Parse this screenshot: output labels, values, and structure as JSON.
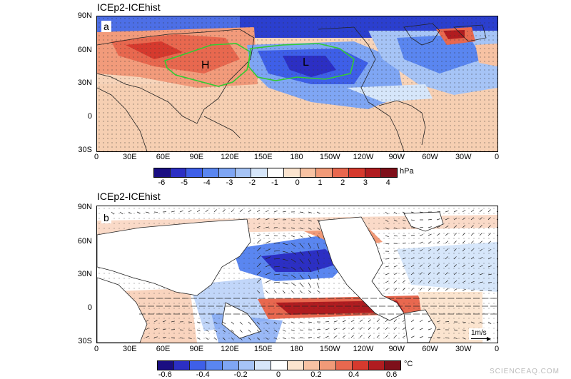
{
  "panel_a": {
    "title": "ICEp2-ICEhist",
    "letter": "a",
    "high_label": "H",
    "low_label": "L",
    "lat_ticks": [
      "90N",
      "60N",
      "30N",
      "0",
      "30S"
    ],
    "lon_ticks": [
      "0",
      "30E",
      "60E",
      "90E",
      "120E",
      "150E",
      "180",
      "150W",
      "120W",
      "90W",
      "60W",
      "30W",
      "0"
    ],
    "colorbar": {
      "colors": [
        "#1a0e82",
        "#2c2fc4",
        "#3e5fe8",
        "#5a86f0",
        "#7fa6f4",
        "#a6c4f6",
        "#d6e6fa",
        "#ffffff",
        "#fbe4cf",
        "#f7c2a3",
        "#f19a78",
        "#e8684f",
        "#d63a2e",
        "#b01c20",
        "#7e0f1a"
      ],
      "labels": [
        "-6",
        "-5",
        "-4",
        "-3",
        "-2",
        "-1",
        "0",
        "1",
        "2",
        "3",
        "4"
      ],
      "unit": "hPa"
    }
  },
  "panel_b": {
    "title": "ICEp2-ICEhist",
    "letter": "b",
    "lat_ticks": [
      "90N",
      "60N",
      "30N",
      "0",
      "30S"
    ],
    "lon_ticks": [
      "0",
      "30E",
      "60E",
      "90E",
      "120E",
      "150E",
      "180",
      "150W",
      "120W",
      "90W",
      "60W",
      "30W",
      "0"
    ],
    "ref_vector_label": "1m/s",
    "colorbar": {
      "colors": [
        "#1a0e82",
        "#2c2fc4",
        "#3e5fe8",
        "#5a86f0",
        "#7fa6f4",
        "#a6c4f6",
        "#d6e6fa",
        "#ffffff",
        "#fbe4cf",
        "#f7c2a3",
        "#f19a78",
        "#e8684f",
        "#d63a2e",
        "#b01c20",
        "#7e0f1a"
      ],
      "labels": [
        "-0.6",
        "-0.4",
        "-0.2",
        "0",
        "0.2",
        "0.4",
        "0.6"
      ],
      "unit": "°C"
    }
  },
  "watermark": "SCIENCEAQ.COM"
}
